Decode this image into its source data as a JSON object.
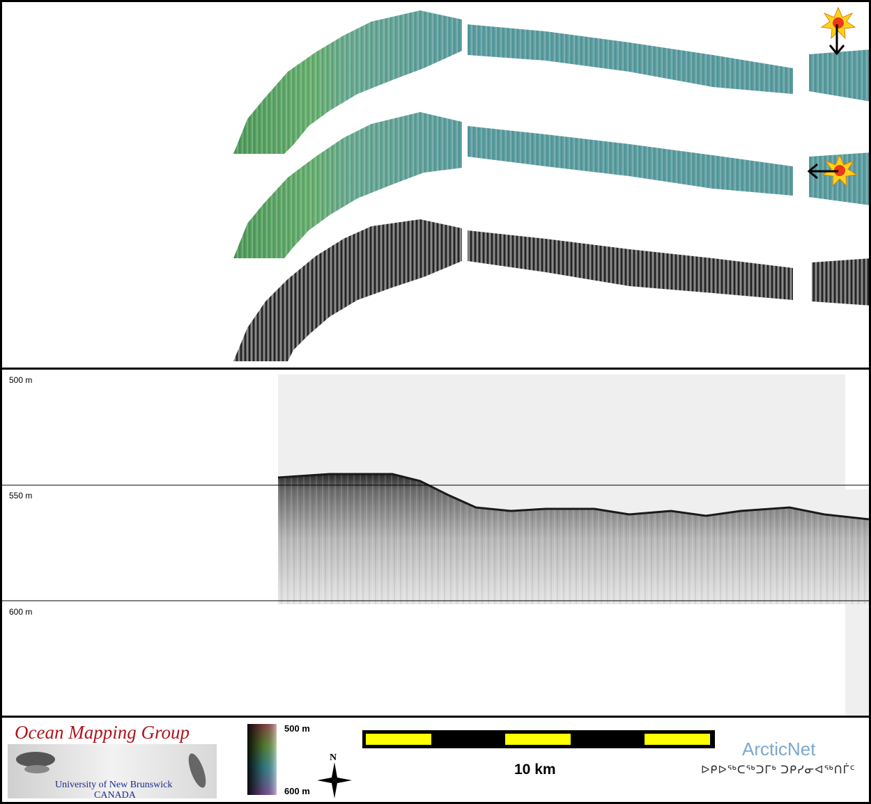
{
  "profile": {
    "depth_labels": [
      "500 m",
      "550 m",
      "600 m"
    ]
  },
  "footer": {
    "logo": {
      "title": "Ocean Mapping Group",
      "university": "University of New Brunswick",
      "country": "CANADA"
    },
    "colorbar": {
      "top_label": "500 m",
      "bottom_label": "600 m"
    },
    "north_label": "N",
    "scale_bar": {
      "label": "10 km",
      "segments": 5,
      "colors": [
        "#ffff00",
        "#000000"
      ]
    },
    "partner": {
      "name": "ArcticNet",
      "inuktitut": "ᐅᑭᐅᖅᑕᖅᑐᒥᒃ ᑐᑭᓯᓂᐊᖅᑎᒦᑦ"
    }
  },
  "colors": {
    "bathy_west": "#5fa863",
    "bathy_east": "#5c9ea2",
    "backscatter": "#444444",
    "sun": "#ffcc00",
    "border": "#000000"
  },
  "icons": [
    "sun-illumination-icon",
    "arrow-down-icon",
    "arrow-left-icon",
    "north-arrow-icon"
  ]
}
